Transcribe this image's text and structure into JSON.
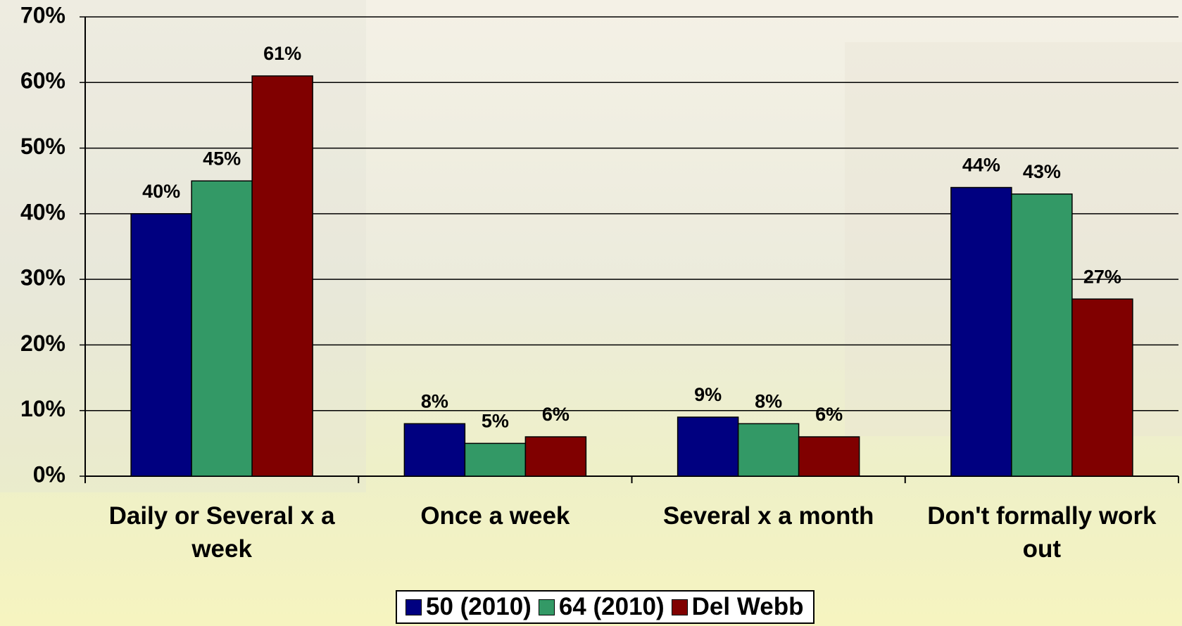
{
  "chart_data": {
    "type": "bar",
    "categories": [
      "Daily or Several x a week",
      "Once a week",
      "Several x a month",
      "Don't formally work out"
    ],
    "series": [
      {
        "name": "50 (2010)",
        "color": "#000080",
        "values": [
          40,
          8,
          9,
          44
        ],
        "value_labels": [
          "40%",
          "8%",
          "9%",
          "44%"
        ]
      },
      {
        "name": "64 (2010)",
        "color": "#339966",
        "values": [
          45,
          5,
          8,
          43
        ],
        "value_labels": [
          "45%",
          "5%",
          "8%",
          "43%"
        ]
      },
      {
        "name": "Del Webb",
        "color": "#800000",
        "values": [
          61,
          6,
          6,
          27
        ],
        "value_labels": [
          "61%",
          "6%",
          "6%",
          "27%"
        ]
      }
    ],
    "ylim": [
      0,
      70
    ],
    "yticks": [
      {
        "value": 0,
        "label": "0%"
      },
      {
        "value": 10,
        "label": "10%"
      },
      {
        "value": 20,
        "label": "20%"
      },
      {
        "value": 30,
        "label": "30%"
      },
      {
        "value": 40,
        "label": "40%"
      },
      {
        "value": 50,
        "label": "50%"
      },
      {
        "value": 60,
        "label": "60%"
      },
      {
        "value": 70,
        "label": "70%"
      }
    ],
    "grid": true,
    "legend": "bottom"
  }
}
